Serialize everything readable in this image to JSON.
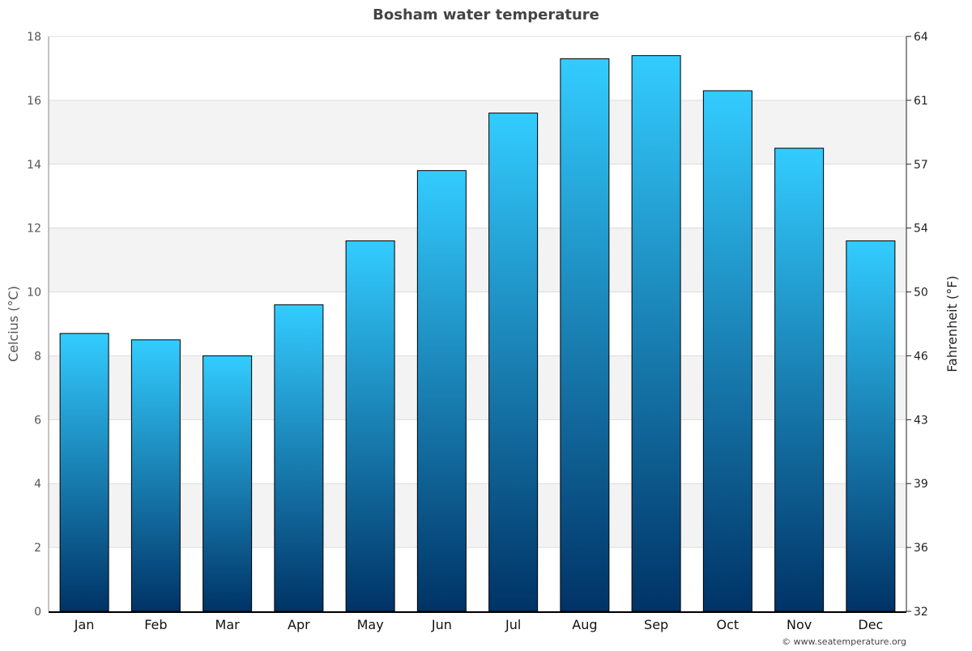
{
  "chart_data": {
    "type": "bar",
    "title": "Bosham water temperature",
    "ylabel": "Celcius (°C)",
    "y2label": "Fahrenheit (°F)",
    "categories": [
      "Jan",
      "Feb",
      "Mar",
      "Apr",
      "May",
      "Jun",
      "Jul",
      "Aug",
      "Sep",
      "Oct",
      "Nov",
      "Dec"
    ],
    "values": [
      8.7,
      8.5,
      8.0,
      9.6,
      11.6,
      13.8,
      15.6,
      17.3,
      17.4,
      16.3,
      14.5,
      11.6
    ],
    "ylim": [
      0,
      18
    ],
    "yticks": [
      0,
      2,
      4,
      6,
      8,
      10,
      12,
      14,
      16,
      18
    ],
    "y2ticks": [
      "32",
      "36",
      "39",
      "43",
      "46",
      "50",
      "54",
      "57",
      "61",
      "64"
    ],
    "grid": true,
    "colors": {
      "bar_top": "#33ccff",
      "bar_bottom": "#003366",
      "band": "#f3f3f3",
      "title": "#444444"
    }
  },
  "credit": "© www.seatemperature.org"
}
